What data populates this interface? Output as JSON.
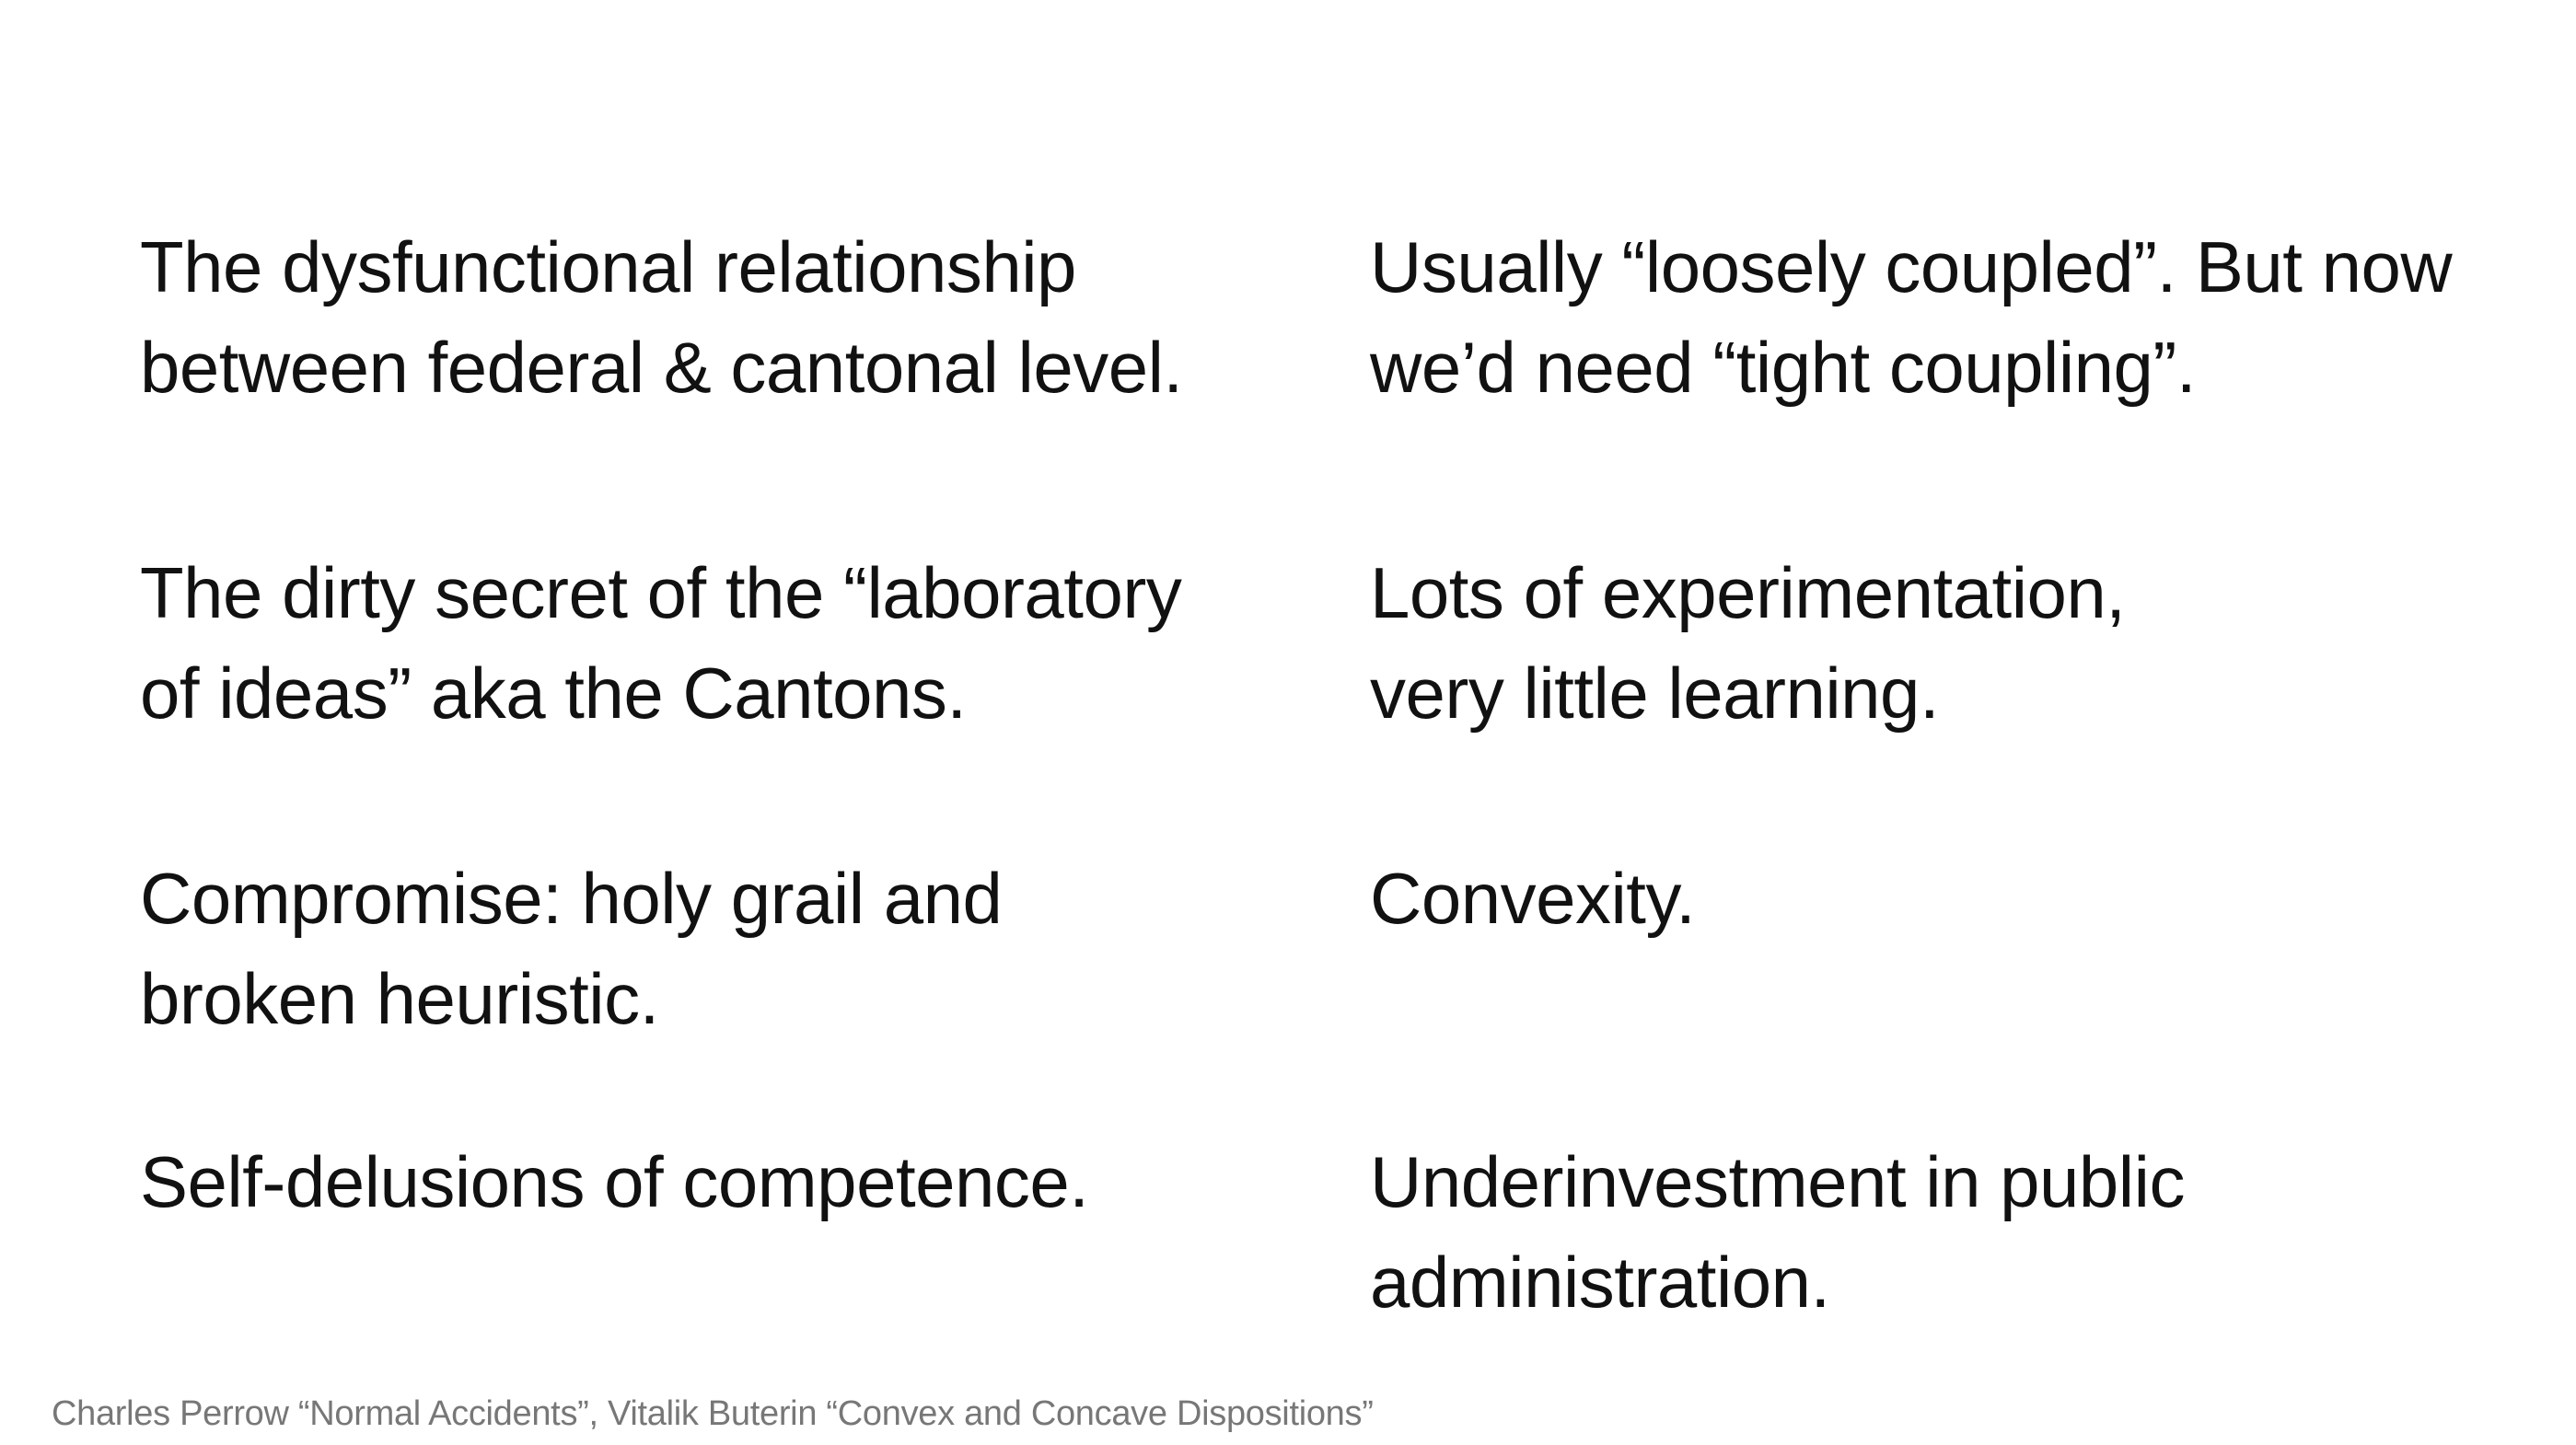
{
  "rows": [
    {
      "left": [
        "The dysfunctional relationship",
        "between federal & cantonal level."
      ],
      "right": [
        "Usually “loosely coupled”. But now",
        "we’d need “tight coupling”."
      ]
    },
    {
      "left": [
        "The dirty secret of the “laboratory",
        "of ideas” aka the Cantons."
      ],
      "right": [
        "Lots of experimentation,",
        "very little learning."
      ]
    },
    {
      "left": [
        "Compromise: holy grail and",
        "broken heuristic."
      ],
      "right": [
        "Convexity."
      ]
    },
    {
      "left": [
        "Self-delusions of competence."
      ],
      "right": [
        "Underinvestment in public",
        "administration."
      ]
    }
  ],
  "citation": "Charles Perrow “Normal Accidents”, Vitalik Buterin “Convex and Concave Dispositions”"
}
